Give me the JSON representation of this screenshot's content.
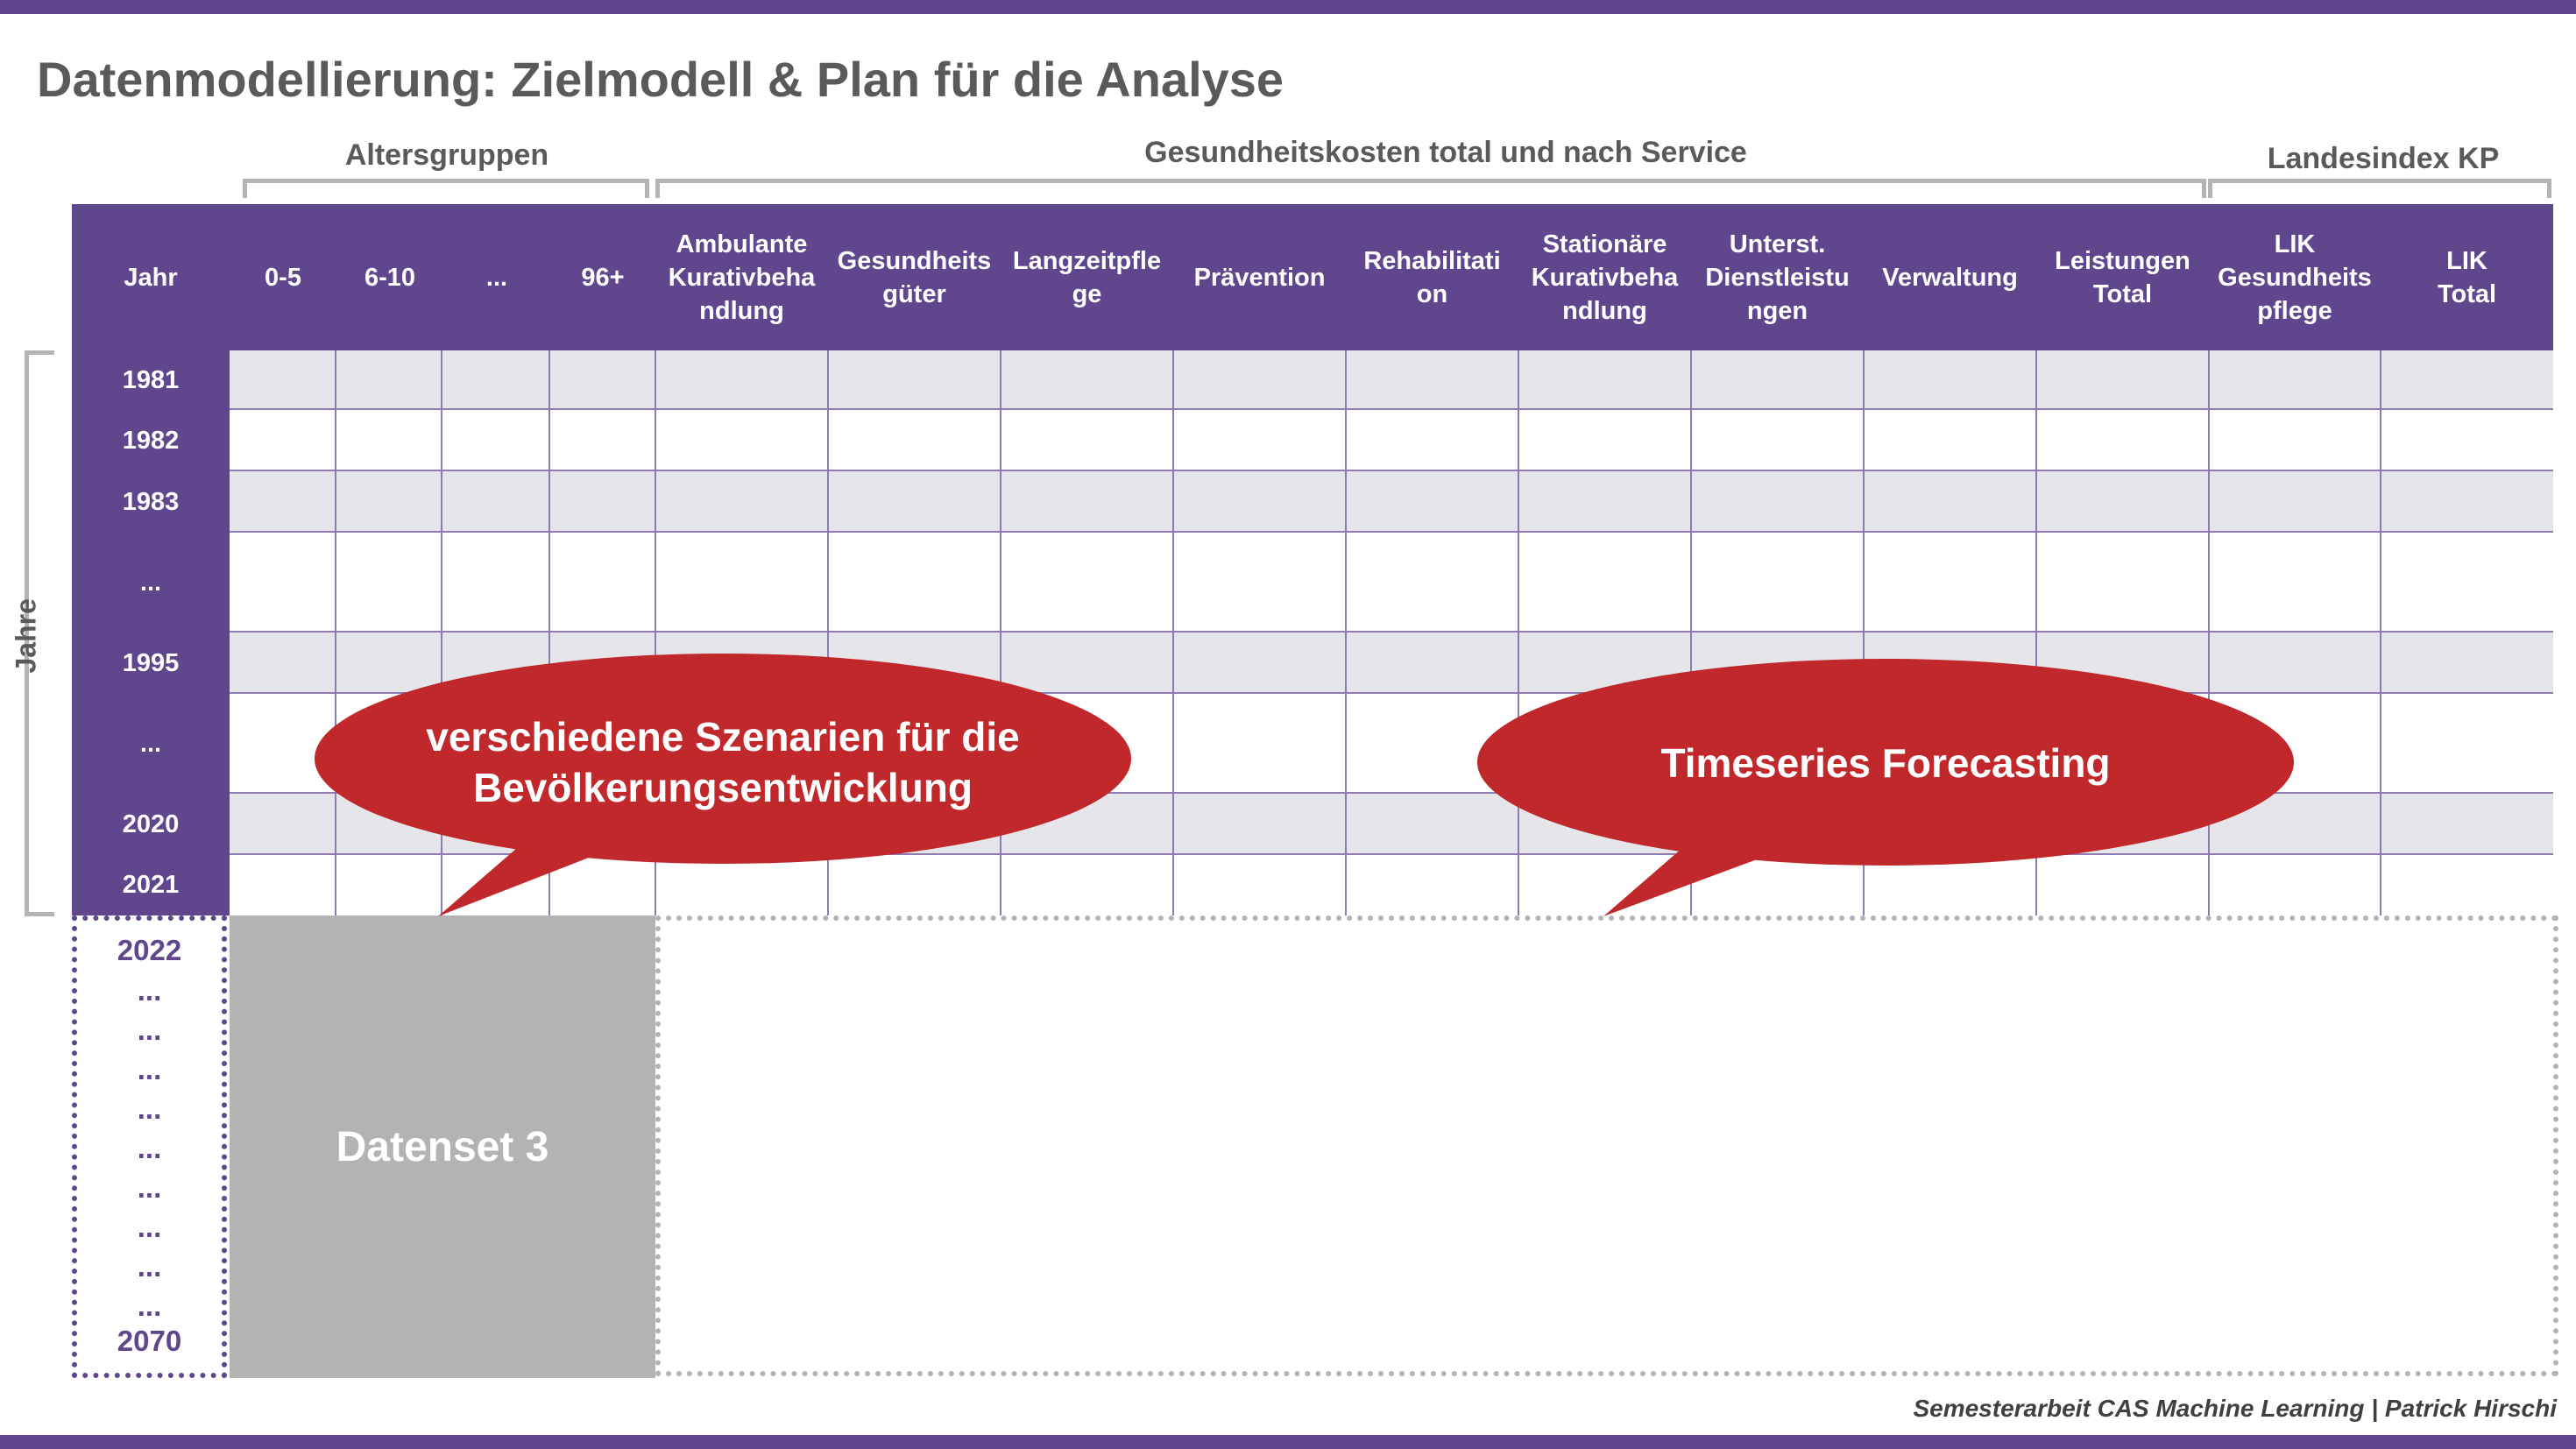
{
  "title": "Datenmodellierung: Zielmodell & Plan für die Analyse",
  "group_labels": {
    "altersgruppen": "Altersgruppen",
    "gesundheitskosten": "Gesundheitskosten total und nach Service",
    "landesindex": "Landesindex KP"
  },
  "row_axis_label": "Jahre",
  "header": {
    "jahr": "Jahr",
    "columns": [
      "0-5",
      "6-10",
      "...",
      "96+",
      "Ambulante\nKurativbeha\nndlung",
      "Gesundheits\ngüter",
      "Langzeitpfle\nge",
      "Prävention",
      "Rehabilitati\non",
      "Stationäre\nKurativbeha\nndlung",
      "Unterst.\nDienstleistu\nngen",
      "Verwaltung",
      "Leistungen\nTotal",
      "LIK\nGesundheits\npflege",
      "LIK\nTotal"
    ]
  },
  "year_rows": [
    "1981",
    "1982",
    "1983",
    "...",
    "1995",
    "...",
    "2020",
    "2021"
  ],
  "future_years": [
    "2022",
    "...",
    "...",
    "...",
    "...",
    "...",
    "...",
    "...",
    "...",
    "...",
    "2070"
  ],
  "dataset_label": "Datenset 3",
  "callouts": {
    "left": "verschiedene Szenarien für die\nBevölkerungsentwicklung",
    "right": "Timeseries Forecasting"
  },
  "footer": "Semesterarbeit CAS Machine Learning | Patrick Hirschi",
  "colors": {
    "purple": "#5f468d",
    "callout_red": "#c0282b",
    "gray": "#b3b3b3",
    "row_shade": "#e6e6ea"
  }
}
